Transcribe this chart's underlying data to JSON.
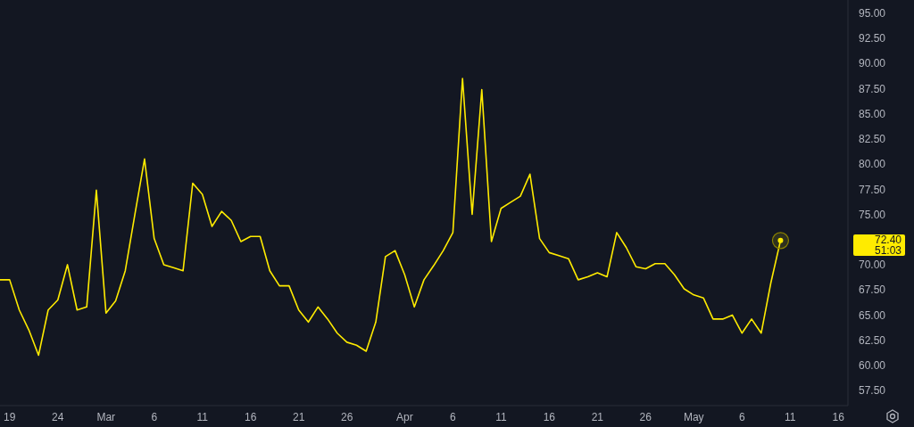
{
  "chart_data": {
    "type": "line",
    "x": [
      "--02-18",
      "--02-19",
      "--02-20",
      "--02-21",
      "--02-22",
      "--02-23",
      "--02-24",
      "--02-25",
      "--02-26",
      "--02-27",
      "--02-28",
      "--03-01",
      "--03-02",
      "--03-03",
      "--03-04",
      "--03-05",
      "--03-06",
      "--03-07",
      "--03-08",
      "--03-09",
      "--03-10",
      "--03-11",
      "--03-12",
      "--03-13",
      "--03-14",
      "--03-15",
      "--03-16",
      "--03-17",
      "--03-18",
      "--03-19",
      "--03-20",
      "--03-21",
      "--03-22",
      "--03-23",
      "--03-24",
      "--03-25",
      "--03-26",
      "--03-27",
      "--03-28",
      "--03-29",
      "--03-30",
      "--03-31",
      "--04-01",
      "--04-02",
      "--04-03",
      "--04-04",
      "--04-05",
      "--04-06",
      "--04-07",
      "--04-08",
      "--04-09",
      "--04-10",
      "--04-11",
      "--04-12",
      "--04-13",
      "--04-14",
      "--04-15",
      "--04-16",
      "--04-17",
      "--04-18",
      "--04-19",
      "--04-20",
      "--04-21",
      "--04-22",
      "--04-23",
      "--04-24",
      "--04-25",
      "--04-26",
      "--04-27",
      "--04-28",
      "--04-29",
      "--04-30",
      "--05-01",
      "--05-02",
      "--05-03",
      "--05-04",
      "--05-05",
      "--05-06",
      "--05-07",
      "--05-08",
      "--05-09",
      "--05-10"
    ],
    "series": [
      {
        "color": "#ffeb00",
        "values": [
          68.5,
          68.5,
          65.5,
          63.5,
          61,
          65.5,
          66.5,
          70,
          65.5,
          65.8,
          77.4,
          65.2,
          66.4,
          69.4,
          75,
          80.5,
          72.6,
          70,
          69.7,
          69.4,
          78.1,
          77,
          73.8,
          75.3,
          74.4,
          72.3,
          72.8,
          72.8,
          69.4,
          67.9,
          67.9,
          65.5,
          64.3,
          65.8,
          64.6,
          63.2,
          62.3,
          62,
          61.4,
          64.3,
          70.8,
          71.4,
          69,
          65.8,
          68.5,
          69.9,
          71.4,
          73.2,
          88.5,
          75,
          87.4,
          72.3,
          75.6,
          76.2,
          76.8,
          79,
          72.6,
          71.2,
          70.9,
          70.6,
          68.5,
          68.8,
          69.2,
          68.8,
          73.2,
          71.7,
          69.8,
          69.6,
          70.1,
          70.1,
          69,
          67.6,
          67,
          66.7,
          64.6,
          64.6,
          65,
          63.2,
          64.6,
          63.2,
          68.2,
          72.4
        ]
      }
    ],
    "xlim": [
      "--02-18",
      "--05-17"
    ],
    "xticks": [
      {
        "value": "--02-19",
        "label": "19"
      },
      {
        "value": "--02-24",
        "label": "24"
      },
      {
        "value": "--03-01",
        "label": "Mar"
      },
      {
        "value": "--03-06",
        "label": "6"
      },
      {
        "value": "--03-11",
        "label": "11"
      },
      {
        "value": "--03-16",
        "label": "16"
      },
      {
        "value": "--03-21",
        "label": "21"
      },
      {
        "value": "--03-26",
        "label": "26"
      },
      {
        "value": "--04-01",
        "label": "Apr"
      },
      {
        "value": "--04-06",
        "label": "6"
      },
      {
        "value": "--04-11",
        "label": "11"
      },
      {
        "value": "--04-16",
        "label": "16"
      },
      {
        "value": "--04-21",
        "label": "21"
      },
      {
        "value": "--04-26",
        "label": "26"
      },
      {
        "value": "--05-01",
        "label": "May"
      },
      {
        "value": "--05-06",
        "label": "6"
      },
      {
        "value": "--05-11",
        "label": "11"
      },
      {
        "value": "--05-16",
        "label": "16"
      }
    ],
    "ylim": [
      56,
      96.3
    ],
    "yticks": [
      {
        "value": 57.5,
        "label": "57.50"
      },
      {
        "value": 60,
        "label": "60.00"
      },
      {
        "value": 62.5,
        "label": "62.50"
      },
      {
        "value": 65,
        "label": "65.00"
      },
      {
        "value": 67.5,
        "label": "67.50"
      },
      {
        "value": 70,
        "label": "70.00"
      },
      {
        "value": 75,
        "label": "75.00"
      },
      {
        "value": 77.5,
        "label": "77.50"
      },
      {
        "value": 80,
        "label": "80.00"
      },
      {
        "value": 82.5,
        "label": "82.50"
      },
      {
        "value": 85,
        "label": "85.00"
      },
      {
        "value": 87.5,
        "label": "87.50"
      },
      {
        "value": 90,
        "label": "90.00"
      },
      {
        "value": 92.5,
        "label": "92.50"
      },
      {
        "value": 95,
        "label": "95.00"
      }
    ],
    "grid": false,
    "legend": false,
    "marker": "none",
    "line_style": "solid",
    "annotations": [
      "72.40",
      "51:03"
    ]
  }
}
